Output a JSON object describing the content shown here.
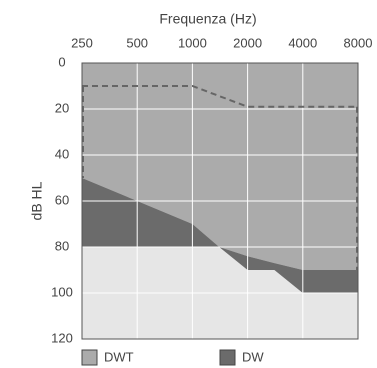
{
  "chart_data": {
    "type": "area",
    "title": "Frequenza (Hz)",
    "y_label": "dB HL",
    "x_scale": "log",
    "xlim": [
      250,
      8000
    ],
    "xticks": [
      250,
      500,
      1000,
      2000,
      4000,
      8000
    ],
    "ylim": [
      0,
      120
    ],
    "yticks": [
      0,
      20,
      40,
      60,
      80,
      100,
      120
    ],
    "y_inverted": true,
    "grid": true,
    "x": [
      250,
      500,
      1000,
      1400,
      2000,
      2800,
      4000,
      8000
    ],
    "series": [
      {
        "name": "DWT",
        "color": "#ababab",
        "values": [
          50,
          60,
          70,
          80,
          84,
          87,
          90,
          90
        ]
      },
      {
        "name": "DW",
        "color": "#6b6b6b",
        "values": [
          80,
          80,
          80,
          80,
          90,
          90,
          100,
          100
        ]
      }
    ],
    "dashed_line": {
      "x": [
        250,
        1000,
        2000,
        8000
      ],
      "values": [
        10,
        10,
        19,
        19
      ]
    }
  }
}
